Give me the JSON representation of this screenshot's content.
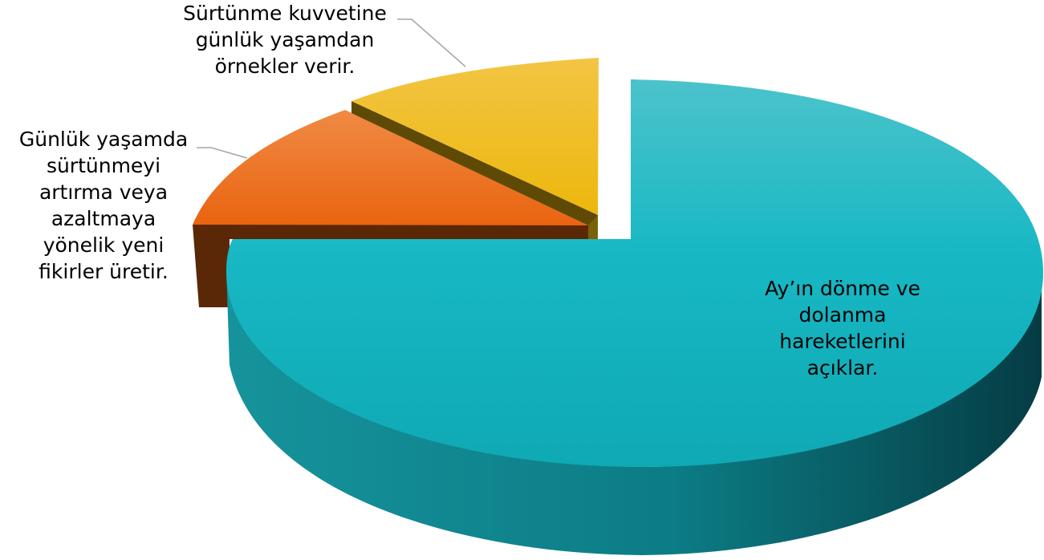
{
  "chart_data": {
    "type": "pie",
    "style": "3d-exploded",
    "legend": "none",
    "slices": [
      {
        "label": "Ay’ın dönme ve\ndolanma\nhareketlerini\naçıklar.",
        "value": 75,
        "color": "#17B8C4"
      },
      {
        "label": "Günlük yaşamda\nsürtünmeyi\nartırma veya\nazaltmaya\nyönelik yeni\nfikirler üretir.",
        "value": 12.5,
        "color": "#EC7014"
      },
      {
        "label": "Sürtünme kuvvetine\ngünlük yaşamdan\nörnekler verir.",
        "value": 12.5,
        "color": "#F0BA12"
      }
    ]
  }
}
